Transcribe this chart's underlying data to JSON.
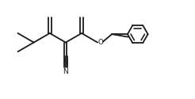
{
  "bg_color": "#ffffff",
  "line_color": "#1a1a1a",
  "line_width": 1.3,
  "fig_width": 2.46,
  "fig_height": 1.25,
  "dpi": 100,
  "xlim": [
    0,
    12
  ],
  "ylim": [
    0,
    7
  ]
}
